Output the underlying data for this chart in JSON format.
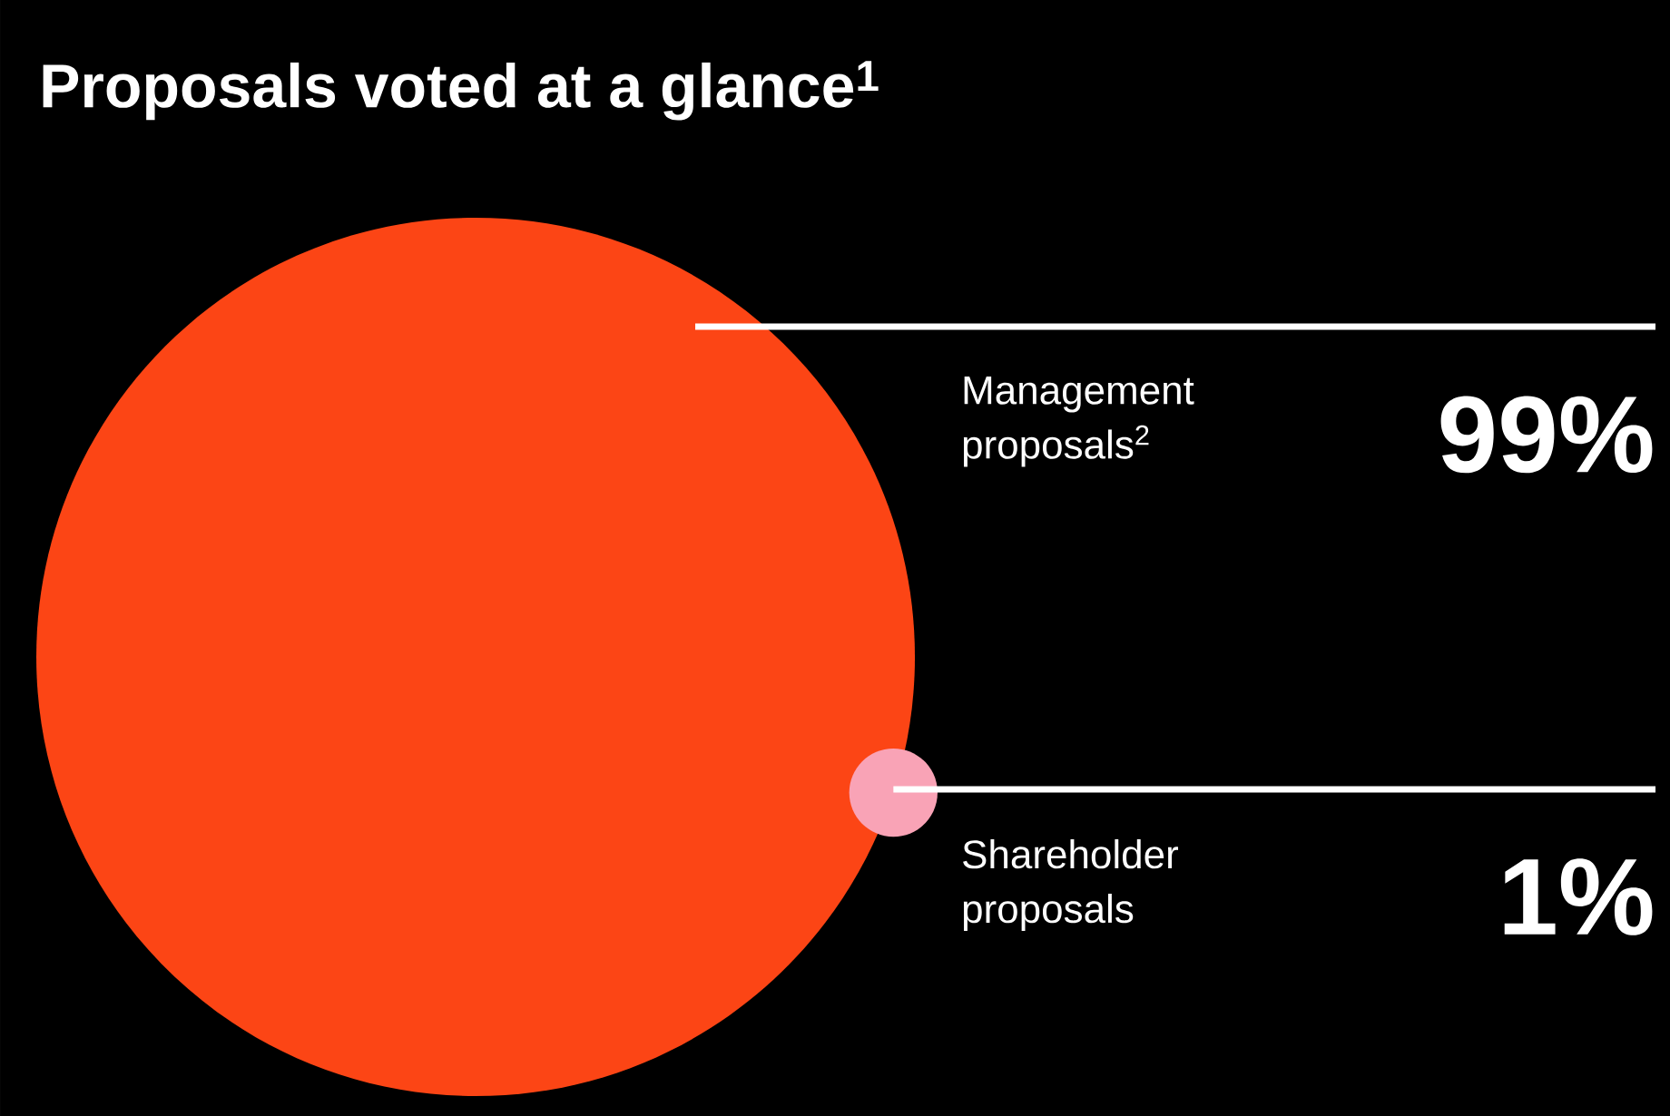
{
  "chart_data": {
    "type": "other",
    "title": "Proposals voted at a glance$^{1}$",
    "categories": [
      "Management proposals$^{2}$",
      "Shareholder proposals"
    ],
    "values": [
      99,
      1
    ],
    "value_labels": [
      "99%",
      "1%"
    ],
    "colors": [
      "#fc4515",
      "#f9a3b6"
    ]
  }
}
